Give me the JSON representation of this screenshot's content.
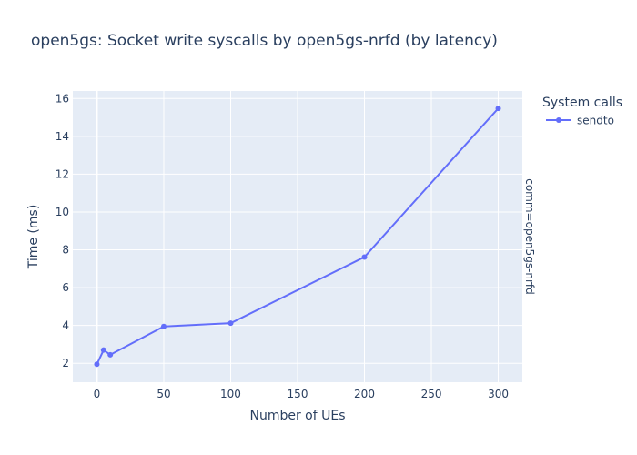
{
  "chart_data": {
    "type": "line",
    "title": "open5gs: Socket write syscalls by open5gs-nrfd (by latency)",
    "xlabel": "Number of UEs",
    "ylabel": "Time (ms)",
    "facet_label": "comm=open5gs-nrfd",
    "legend_title": "System calls",
    "legend_position": "top-right",
    "xlim": [
      -18,
      318
    ],
    "ylim": [
      1.0,
      16.4
    ],
    "x_ticks": [
      0,
      50,
      100,
      150,
      200,
      250,
      300
    ],
    "y_ticks": [
      2,
      4,
      6,
      8,
      10,
      12,
      14,
      16
    ],
    "grid": true,
    "series": [
      {
        "name": "sendto",
        "color": "#636efa",
        "x": [
          0,
          5,
          10,
          50,
          100,
          200,
          300
        ],
        "y": [
          1.95,
          2.7,
          2.45,
          3.95,
          4.12,
          7.62,
          15.48
        ]
      }
    ]
  },
  "colors": {
    "plot_background": "#e5ecf6",
    "grid": "#ffffff",
    "text": "#2a3f5f"
  }
}
